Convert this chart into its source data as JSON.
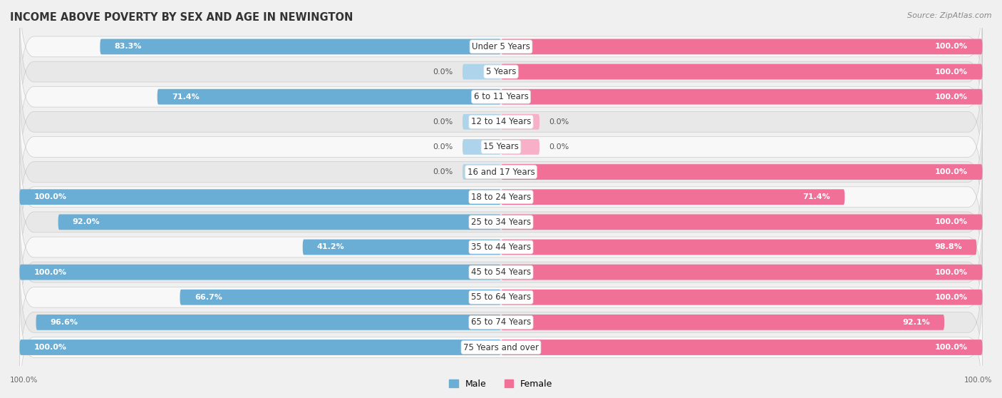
{
  "title": "INCOME ABOVE POVERTY BY SEX AND AGE IN NEWINGTON",
  "source": "Source: ZipAtlas.com",
  "categories": [
    "Under 5 Years",
    "5 Years",
    "6 to 11 Years",
    "12 to 14 Years",
    "15 Years",
    "16 and 17 Years",
    "18 to 24 Years",
    "25 to 34 Years",
    "35 to 44 Years",
    "45 to 54 Years",
    "55 to 64 Years",
    "65 to 74 Years",
    "75 Years and over"
  ],
  "male": [
    83.3,
    0.0,
    71.4,
    0.0,
    0.0,
    0.0,
    100.0,
    92.0,
    41.2,
    100.0,
    66.7,
    96.6,
    100.0
  ],
  "female": [
    100.0,
    100.0,
    100.0,
    0.0,
    0.0,
    100.0,
    71.4,
    100.0,
    98.8,
    100.0,
    100.0,
    92.1,
    100.0
  ],
  "male_color": "#6aadd5",
  "female_color": "#f07098",
  "male_light_color": "#aed4ec",
  "female_light_color": "#f8afc8",
  "bg_color": "#f0f0f0",
  "row_bg_even": "#e8e8e8",
  "row_bg_odd": "#f8f8f8",
  "legend_male": "Male",
  "legend_female": "Female",
  "bar_height": 0.62,
  "title_fontsize": 10.5,
  "label_fontsize": 8.5,
  "value_fontsize": 8.0,
  "max_val": 100.0
}
